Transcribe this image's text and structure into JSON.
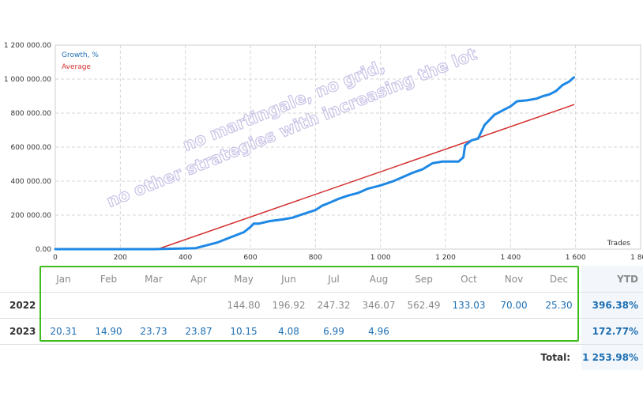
{
  "chart_data": {
    "type": "line",
    "x_axis_label": "Trades",
    "xlim": [
      0,
      1800
    ],
    "ylim": [
      0,
      1200000
    ],
    "x_ticks": [
      "0",
      "200",
      "400",
      "600",
      "800",
      "1 000",
      "1 200",
      "1 400",
      "1 600",
      "1 800"
    ],
    "y_ticks": [
      "0.00",
      "200 000.00",
      "400 000.00",
      "600 000.00",
      "800 000.00",
      "1 000 000.00",
      "1 200 000.00"
    ],
    "legend_position": "top-left",
    "grid": true,
    "series": [
      {
        "name": "Growth, %",
        "color": "#1e88e5",
        "x": [
          0,
          300,
          430,
          460,
          500,
          540,
          580,
          600,
          610,
          625,
          660,
          700,
          730,
          760,
          800,
          820,
          840,
          870,
          900,
          930,
          960,
          1000,
          1040,
          1070,
          1100,
          1130,
          1160,
          1190,
          1200,
          1240,
          1255,
          1260,
          1280,
          1300,
          1320,
          1350,
          1380,
          1400,
          1420,
          1450,
          1480,
          1500,
          1520,
          1540,
          1560,
          1580,
          1595
        ],
        "y": [
          0,
          0,
          5000,
          20000,
          40000,
          70000,
          100000,
          130000,
          150000,
          150000,
          165000,
          175000,
          185000,
          205000,
          230000,
          255000,
          270000,
          295000,
          315000,
          330000,
          355000,
          375000,
          400000,
          425000,
          450000,
          470000,
          505000,
          515000,
          515000,
          515000,
          540000,
          610000,
          640000,
          650000,
          730000,
          790000,
          820000,
          840000,
          870000,
          875000,
          885000,
          900000,
          910000,
          930000,
          965000,
          985000,
          1010000
        ]
      },
      {
        "name": "Average",
        "color": "#d32f2f",
        "x": [
          315,
          1595
        ],
        "y": [
          0,
          850000
        ]
      }
    ]
  },
  "watermark": {
    "line1": "no martingale, no grid,",
    "line2": "no other strategies with increasing the lot"
  },
  "table": {
    "months": [
      "Jan",
      "Feb",
      "Mar",
      "Apr",
      "May",
      "Jun",
      "Jul",
      "Aug",
      "Sep",
      "Oct",
      "Nov",
      "Dec"
    ],
    "ytd_label": "YTD",
    "rows": [
      {
        "year": "2022",
        "values": [
          "",
          "",
          "",
          "",
          "144.80",
          "196.92",
          "247.32",
          "346.07",
          "562.49",
          "133.03",
          "70.00",
          "25.30"
        ],
        "ytd": "396.38%"
      },
      {
        "year": "2023",
        "values": [
          "20.31",
          "14.90",
          "23.73",
          "23.87",
          "10.15",
          "4.08",
          "6.99",
          "4.96",
          "",
          "",
          "",
          ""
        ],
        "ytd": "172.77%"
      }
    ],
    "total_label": "Total:",
    "total_value": "1 253.98%"
  }
}
